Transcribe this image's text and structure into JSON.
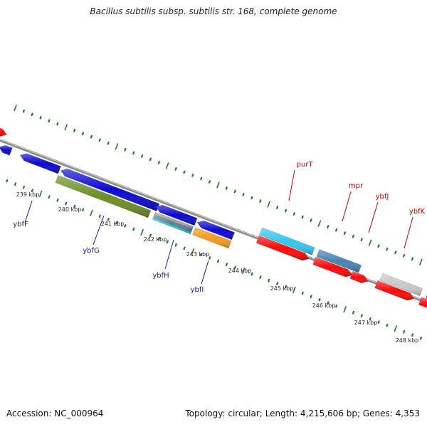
{
  "title": "Bacillus subtilis subsp. subtilis str. 168, complete genome",
  "accession": "Accession: NC_000964",
  "summary": "Topology: circular; Length: 4,215,606 bp; Genes: 4,353",
  "colors": {
    "backbone": "#8c8c8c",
    "tick": "#1f7a1f",
    "lower_strand_label": "#1a1aa0",
    "upper_strand_label": "#cc0000"
  },
  "scale_labels": [
    "239 kbp",
    "240 kbp",
    "241 kbp",
    "242 kbp",
    "243 kbp",
    "244 kbp",
    "245 kbp",
    "246 kbp",
    "247 kbp",
    "248 kbp"
  ],
  "genes": [
    {
      "label": "ybfF",
      "color": "#1a1aa0",
      "strand": "lower"
    },
    {
      "label": "ybfG",
      "color": "#1a1aa0",
      "strand": "lower"
    },
    {
      "label": "ybfH",
      "color": "#1a1aa0",
      "strand": "lower"
    },
    {
      "label": "ybfI",
      "color": "#1a1aa0",
      "strand": "lower"
    },
    {
      "label": "purT",
      "color": "#cc0000",
      "strand": "upper"
    },
    {
      "label": "mpr",
      "color": "#cc0000",
      "strand": "upper"
    },
    {
      "label": "ybfJ",
      "color": "#cc0000",
      "strand": "upper"
    },
    {
      "label": "ybfK",
      "color": "#cc0000",
      "strand": "upper"
    }
  ]
}
